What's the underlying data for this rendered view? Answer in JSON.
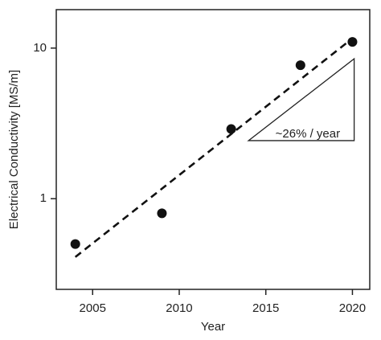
{
  "chart_data": {
    "type": "scatter",
    "x_label": "Year",
    "y_label": "Electrical Conductivity [MS/m]",
    "log_y": true,
    "color": "#111111",
    "series": [
      {
        "x": [
          2004,
          2009,
          2013,
          2017,
          2020
        ],
        "values": [
          0.5,
          0.8,
          2.9,
          7.7,
          11
        ]
      }
    ],
    "trend": {
      "x": [
        2004,
        2020
      ],
      "values": [
        0.41,
        11.6
      ]
    },
    "annotation": {
      "text": "~26% / year",
      "x": [
        2014,
        2020.1,
        2020.1
      ],
      "y": [
        2.43,
        2.43,
        8.5
      ]
    },
    "xlim": [
      2002.9,
      2021
    ],
    "ylim": [
      0.25,
      18
    ],
    "xticks": [
      2005,
      2010,
      2015,
      2020
    ],
    "yticks": [
      1,
      10
    ]
  }
}
